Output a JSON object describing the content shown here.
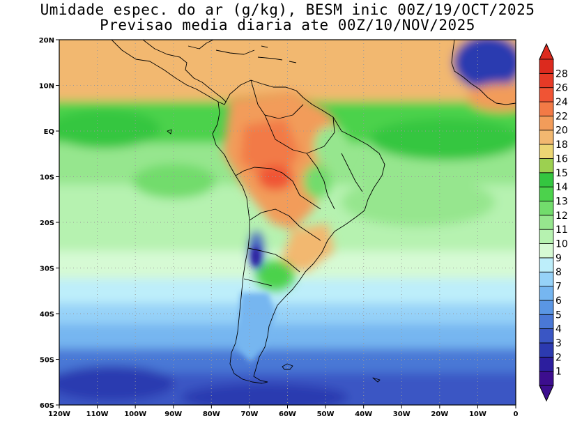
{
  "title": {
    "line1": "Umidade espec. do ar (g/kg), BESM inic 00Z/19/OCT/2025",
    "line2": "Previsao media diaria ate 00Z/10/NOV/2025"
  },
  "map": {
    "lon_range": [
      -120,
      0
    ],
    "lat_range": [
      -60,
      20
    ],
    "lon_ticks": [
      {
        "value": -120,
        "label": "120W"
      },
      {
        "value": -110,
        "label": "110W"
      },
      {
        "value": -100,
        "label": "100W"
      },
      {
        "value": -90,
        "label": "90W"
      },
      {
        "value": -80,
        "label": "80W"
      },
      {
        "value": -70,
        "label": "70W"
      },
      {
        "value": -60,
        "label": "60W"
      },
      {
        "value": -50,
        "label": "50W"
      },
      {
        "value": -40,
        "label": "40W"
      },
      {
        "value": -30,
        "label": "30W"
      },
      {
        "value": -20,
        "label": "20W"
      },
      {
        "value": -10,
        "label": "10W"
      },
      {
        "value": 0,
        "label": "0"
      }
    ],
    "lat_ticks": [
      {
        "value": 20,
        "label": "20N"
      },
      {
        "value": 10,
        "label": "10N"
      },
      {
        "value": 0,
        "label": "EQ"
      },
      {
        "value": -10,
        "label": "10S"
      },
      {
        "value": -20,
        "label": "20S"
      },
      {
        "value": -30,
        "label": "30S"
      },
      {
        "value": -40,
        "label": "40S"
      },
      {
        "value": -50,
        "label": "50S"
      },
      {
        "value": -60,
        "label": "60S"
      }
    ]
  },
  "colorbar": {
    "levels": [
      "1",
      "2",
      "3",
      "4",
      "5",
      "6",
      "7",
      "8",
      "9",
      "10",
      "11",
      "12",
      "13",
      "14",
      "15",
      "16",
      "18",
      "20",
      "22",
      "24",
      "26",
      "28"
    ],
    "colors": [
      "#3c0e8e",
      "#2c1e9e",
      "#2c3ab0",
      "#3a56c4",
      "#4a78d6",
      "#5a96e4",
      "#76b6f0",
      "#96d2f8",
      "#bdeefa",
      "#d6fad4",
      "#b6f2b0",
      "#96e68e",
      "#72dc6c",
      "#4cd24c",
      "#34c640",
      "#9cd050",
      "#ecd674",
      "#f2b870",
      "#f29c5a",
      "#f27a46",
      "#f05434",
      "#e63a26",
      "#dc2a1e"
    ],
    "under_color": "#3c0e8e",
    "over_color": "#dc2a1e"
  }
}
